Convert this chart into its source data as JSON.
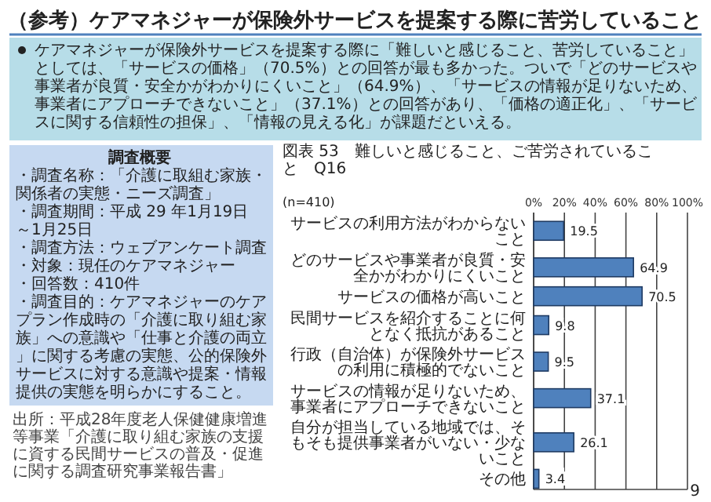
{
  "chart_data": {
    "type": "bar",
    "orientation": "horizontal",
    "title": "（参考）ケアマネジャーが保険外サービスを提案する際に苦労していること",
    "subtitle": "図表 53　難しいと感じること、ご苦労されていること　Q16",
    "categories": [
      "サービスの利用方法がわからないこと",
      "どのサービスや事業者が良質・安全かがわかりにくいこと",
      "サービスの価格が高いこと",
      "民間サービスを紹介することに何となく抵抗があること",
      "行政（自治体）が保険外サービスの利用に積極的でないこと",
      "サービスの情報が足りないため、事業者にアプローチできないこと",
      "自分が担当している地域では、そもそも提供事業者がいない・少ないこと",
      "その他"
    ],
    "values": [
      19.5,
      64.9,
      70.5,
      9.8,
      9.5,
      37.1,
      26.1,
      3.4
    ],
    "color": "#4f81bd",
    "data_labels": true,
    "grid": "x",
    "xlim": [
      0,
      100
    ],
    "xticks": [
      {
        "value": 0,
        "label": "0%"
      },
      {
        "value": 20,
        "label": "20%"
      },
      {
        "value": 40,
        "label": "40%"
      },
      {
        "value": 60,
        "label": "60%"
      },
      {
        "value": 80,
        "label": "80%"
      },
      {
        "value": 100,
        "label": "100%"
      }
    ],
    "annotations": [
      "ケアマネジャーが保険外サービスを提案する際に「難しいと感じること、苦労していること」としては、「サービスの価格」（70.5%）との回答が最も多かった。ついで「どのサービスや事業者が良質・安全かがわかりにくいこと」（64.9%）、「サービスの情報が足りないため、事業者にアプローチできないこと」（37.1%）との回答があり、「価格の適正化」、「サービスに関する信頼性の担保」、「情報の見える化」が課題だといえる。",
      "(n=410)",
      "調査概要",
      "・調査名称：「介護に取組む家族・関係者の実態・ニーズ調査」",
      "・調査期間：平成 29 年1月19日～1月25日",
      "・調査方法：ウェブアンケート調査",
      "・対象：現任のケアマネジャー",
      "・回答数：410件",
      "・調査目的：ケアマネジャーのケアプラン作成時の「介護に取り組む家族」への意識や「仕事と介護の両立」に関する考慮の実態、公的保険外サービスに対する意識や提案・情報提供の実態を明らかにすること。",
      "出所：平成28年度老人保健健康増進等事業「介護に取り組む家族の支援に資する民間サービスの普及・促進に関する調査研究事業報告書」",
      "9"
    ]
  }
}
